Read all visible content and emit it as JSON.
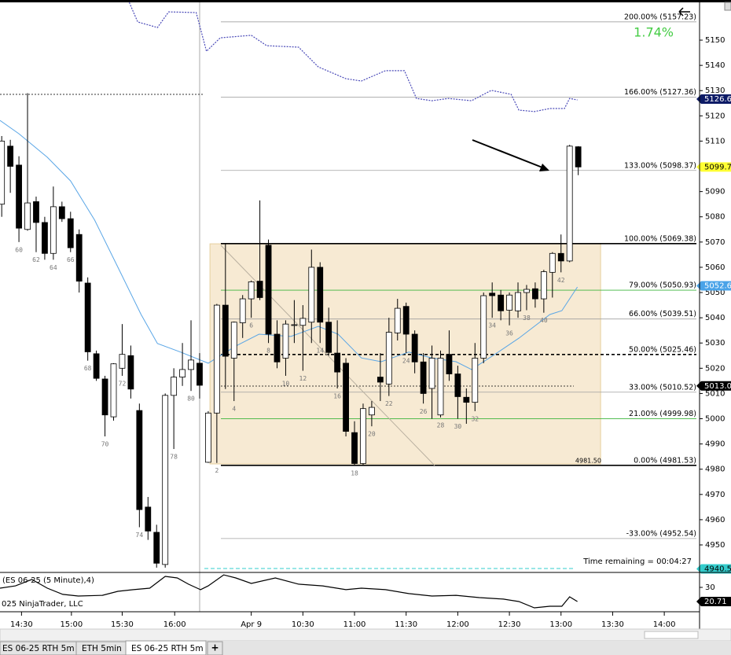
{
  "chart_data": {
    "type": "candlestick",
    "x": [
      58,
      59,
      60,
      61,
      62,
      63,
      64,
      65,
      66,
      67,
      68,
      69,
      70,
      71,
      72,
      73,
      74,
      75,
      76,
      77,
      78,
      79,
      80,
      81,
      82,
      83,
      84,
      85,
      86,
      87,
      88,
      89,
      90,
      91,
      92,
      93,
      94,
      95,
      96,
      97,
      98,
      99,
      100,
      101,
      102,
      103,
      104,
      105,
      106,
      107,
      108,
      109,
      110,
      111,
      112,
      113,
      114,
      115,
      116,
      117,
      118,
      119,
      120,
      121,
      122,
      123,
      124,
      125
    ],
    "open": [
      5085,
      5108,
      5100.5,
      5075,
      5086,
      5077.75,
      5065.5,
      5084,
      5079.25,
      5073,
      5053.75,
      5025.75,
      5015.75,
      5000.75,
      5020,
      5025,
      5003.25,
      4965,
      4955,
      4942.25,
      5009.25,
      5016.5,
      5019.5,
      5022,
      4982.75,
      5002.25,
      5045,
      5024,
      5038,
      5047.5,
      5054.5,
      5068.75,
      5033.5,
      5024,
      5037,
      5037,
      5038.25,
      5060,
      5038.25,
      5026,
      5022,
      4994.5,
      4982.25,
      5001.5,
      5016.5,
      5013.75,
      5034,
      5044.5,
      5033.5,
      5022.5,
      5012,
      5001.5,
      5025.5,
      5017.75,
      5008.5,
      5006.5,
      5024,
      5049.75,
      5049,
      5043,
      5042.75,
      5050,
      5051.5,
      5047.5,
      5058,
      5065.5,
      5062.5,
      5107.75
    ],
    "high": [
      5112,
      5110.5,
      5104,
      5129,
      5088,
      5080,
      5092,
      5086,
      5082,
      5075,
      5056,
      5027,
      5017,
      5022,
      5037.5,
      5029,
      5006,
      4969,
      4958,
      5010,
      5020,
      5030,
      5039,
      5026,
      5003,
      5045.5,
      5069.5,
      5038.5,
      5049,
      5054.75,
      5086.5,
      5071,
      5039,
      5039,
      5047,
      5045,
      5067,
      5062,
      5044,
      5039,
      5024,
      4999,
      5006,
      5007,
      5026,
      5040,
      5047.5,
      5046,
      5035,
      5026,
      5029,
      5027,
      5035,
      5021,
      5012,
      5030,
      5050,
      5054,
      5051,
      5050,
      5054,
      5053,
      5054,
      5059,
      5066,
      5073,
      5108.5,
      5108
    ],
    "low": [
      5080,
      5089.5,
      5070,
      5074.5,
      5066,
      5063,
      5063,
      5078,
      5066,
      5050,
      5023,
      5015,
      4993,
      4999.25,
      5017,
      5008,
      4957,
      4952,
      4941,
      4941,
      4988,
      5013,
      5011,
      5008,
      4982.5,
      4982.5,
      5011.75,
      5007,
      5032,
      5040,
      5047,
      5030,
      5020,
      5017,
      5030,
      5019,
      5030,
      5030,
      5025,
      5012,
      4993,
      4981.5,
      4981.5,
      4997,
      5007,
      5009,
      5031,
      5026,
      5018,
      5006,
      5000,
      5000.5,
      5015,
      5000,
      4998,
      5003,
      5022,
      5040,
      5039,
      5037,
      5040,
      5043,
      5044,
      5042,
      5048,
      5058,
      5062,
      5096.5
    ],
    "close": [
      5110,
      5100,
      5075.5,
      5085.5,
      5077.75,
      5065.5,
      5084,
      5079.25,
      5067.75,
      5054.5,
      5026.5,
      5016,
      5001.5,
      5021.75,
      5025.5,
      5011.75,
      4964,
      4955.5,
      4942.75,
      5009.25,
      5016.5,
      5019.5,
      5023.25,
      5013.25,
      5002.25,
      5045,
      5024.75,
      5038.25,
      5047.5,
      5054.25,
      5048,
      5033.5,
      5022.5,
      5037.5,
      5037.25,
      5039.75,
      5060,
      5038.25,
      5026.25,
      5018.5,
      4995,
      4982.25,
      5004,
      5004.5,
      5014.5,
      5034.25,
      5043.75,
      5033.5,
      5022.5,
      5010,
      5024,
      5024,
      5017.75,
      5008.75,
      5006.5,
      5024,
      5048.75,
      5048.75,
      5042.75,
      5049,
      5050,
      5051.25,
      5047.5,
      5058.25,
      5065.5,
      5062.5,
      5108,
      5099.75
    ],
    "bar_labels": [
      null,
      null,
      "60",
      null,
      "62",
      null,
      "64",
      null,
      "66",
      null,
      "68",
      null,
      "70",
      null,
      "72",
      null,
      "74",
      null,
      null,
      null,
      "78",
      null,
      "80",
      null,
      null,
      "2",
      null,
      "4",
      null,
      "6",
      null,
      "8",
      null,
      "10",
      null,
      "12",
      null,
      "14",
      null,
      "16",
      null,
      "18",
      null,
      "20",
      null,
      "22",
      null,
      "24",
      null,
      "26",
      null,
      "28",
      null,
      "30",
      null,
      "32",
      null,
      "34",
      null,
      "36",
      null,
      "38",
      null,
      "40",
      null,
      "42",
      null,
      null
    ],
    "up_color": "#ffffff",
    "down_color": "#000000",
    "xlim": [
      57.8,
      139.1
    ],
    "xticks": [
      {
        "value": 60.3,
        "label": "14:30"
      },
      {
        "value": 66.1,
        "label": "15:00"
      },
      {
        "value": 72,
        "label": "15:30"
      },
      {
        "value": 78.1,
        "label": "16:00"
      },
      {
        "value": 87,
        "label": "Apr 9"
      },
      {
        "value": 93,
        "label": "10:30"
      },
      {
        "value": 99,
        "label": "11:00"
      },
      {
        "value": 105,
        "label": "11:30"
      },
      {
        "value": 111,
        "label": "12:00"
      },
      {
        "value": 117,
        "label": "12:30"
      },
      {
        "value": 123,
        "label": "13:00"
      },
      {
        "value": 129,
        "label": "13:30"
      },
      {
        "value": 135,
        "label": "14:00"
      }
    ],
    "ylim": [
      4939.1,
      5165.9
    ],
    "yticks": [
      4950,
      4960,
      4970,
      4980,
      4990,
      5000,
      5010,
      5020,
      5030,
      5040,
      5050,
      5060,
      5070,
      5080,
      5090,
      5100,
      5110,
      5120,
      5130,
      5140,
      5150
    ],
    "series": [
      {
        "color": "#5aa6e6",
        "style": "solid",
        "x": [
          57.8,
          60,
          63.3,
          66,
          68.8,
          71.5,
          74.2,
          76.1,
          78.8,
          82,
          85.2,
          87.9,
          91.6,
          94.8,
          97.1,
          99.8,
          102.1,
          105.3,
          108,
          110.8,
          112.6,
          115.3,
          118.1,
          121.7,
          123.1,
          124.9
        ],
        "values": [
          5118.2,
          5112.9,
          5103.6,
          5094.2,
          5078.7,
          5060,
          5041.3,
          5029.8,
          5026.4,
          5022,
          5028.8,
          5033.5,
          5032.6,
          5036.6,
          5033.5,
          5024.1,
          5022.6,
          5026.4,
          5024.1,
          5022.6,
          5019.5,
          5025.5,
          5031.9,
          5041.3,
          5042.8,
          5052.2
        ]
      },
      {
        "color": "#4a4ab8",
        "style": "dotted",
        "x": [
          72.7,
          73.8,
          76.1,
          77.4,
          80.6,
          81.8,
          83.4,
          87,
          88.8,
          92.5,
          94.8,
          98,
          99.8,
          102.6,
          104.8,
          106.2,
          108,
          109.9,
          112.6,
          114.9,
          117.2,
          118.1,
          119.9,
          121.7,
          123.4,
          124,
          124.9
        ],
        "values": [
          5165.9,
          5157.2,
          5155,
          5161.2,
          5160.9,
          5145.6,
          5150.9,
          5151.9,
          5147.8,
          5147.2,
          5139.4,
          5134.7,
          5133.8,
          5137.9,
          5137.9,
          5126.9,
          5126,
          5126.9,
          5126,
          5130.1,
          5128.5,
          5122.3,
          5121.7,
          5122.9,
          5122.9,
          5126.9,
          5126.3
        ]
      }
    ],
    "fib_levels": [
      {
        "label": "200.00% (5157.23)",
        "value": 5157.23,
        "color": "#a0a0a0",
        "style": "thin"
      },
      {
        "label": "166.00% (5127.36)",
        "value": 5127.36,
        "color": "#a0a0a0",
        "style": "thin"
      },
      {
        "label": "133.00% (5098.37)",
        "value": 5098.37,
        "color": "#a0a0a0",
        "style": "thin"
      },
      {
        "label": "100.00% (5069.38)",
        "value": 5069.38,
        "color": "#000000",
        "style": "bold"
      },
      {
        "label": "79.00% (5050.93)",
        "value": 5050.93,
        "color": "#3cb43c",
        "style": "thin"
      },
      {
        "label": "66.00% (5039.51)",
        "value": 5039.51,
        "color": "#a0a0a0",
        "style": "thin"
      },
      {
        "label": "50.00% (5025.46)",
        "value": 5025.46,
        "color": "#000000",
        "style": "dashed"
      },
      {
        "label": "33.00% (5010.52)",
        "value": 5010.52,
        "color": "#a0a0a0",
        "style": "thin"
      },
      {
        "label": "21.00% (4999.98)",
        "value": 4999.98,
        "color": "#3cb43c",
        "style": "thin"
      },
      {
        "label": "0.00% (4981.53)",
        "value": 4981.53,
        "color": "#000000",
        "style": "bold"
      },
      {
        "label": "-33.00% (4952.54)",
        "value": 4952.54,
        "color": "#a0a0a0",
        "style": "thin"
      }
    ],
    "range_box": {
      "x": [
        82.2,
        127.6
      ],
      "y": [
        4982.1,
        5069.3
      ],
      "color": "#f7ead3"
    },
    "price_markers": [
      {
        "value": 5126.65,
        "bg": "#0c1a66",
        "fg": "#ffffff"
      },
      {
        "value": 5099.75,
        "bg": "#ffff33",
        "fg": "#000000"
      },
      {
        "value": 5052.66,
        "bg": "#4aa3e8",
        "fg": "#ffffff"
      },
      {
        "value": 5013,
        "label": "5013.00",
        "bg": "#000000",
        "fg": "#ffffff"
      },
      {
        "value": 4940.5,
        "label": "4940.50",
        "bg": "#33cccc",
        "fg": "#000000"
      }
    ],
    "change_text": "1.74%",
    "time_remaining": "Time remaining = 00:04:27",
    "box_low_label": "4981.50",
    "indicator": {
      "title": "(ES 06-25 (5 Minute),4)",
      "color": "#000000",
      "x": [
        57.8,
        59.6,
        61.5,
        63.3,
        65.1,
        66.9,
        69.7,
        71.5,
        73.3,
        75.2,
        77,
        78.4,
        79.7,
        81.1,
        82,
        83.8,
        85.2,
        87,
        89.8,
        92.5,
        95.3,
        98,
        99.8,
        102.6,
        105.3,
        108,
        110.8,
        113.5,
        116.3,
        118.1,
        119.9,
        121.7,
        123.1,
        124,
        124.9
      ],
      "values": [
        29.5,
        31,
        35.2,
        29.5,
        25.4,
        24.3,
        24.8,
        27.4,
        28.5,
        29.5,
        37.2,
        36.2,
        32.1,
        28.5,
        31,
        38.2,
        36.2,
        32.6,
        36.2,
        32.1,
        31,
        28.5,
        29.5,
        28.5,
        25.9,
        24.3,
        24.8,
        23.3,
        22.3,
        20.7,
        16.6,
        17.6,
        17.6,
        23.8,
        20.7
      ],
      "ylim": [
        14,
        39.8
      ],
      "yticks": [
        30
      ],
      "marker": {
        "value": 20.71,
        "bg": "#000000",
        "fg": "#ffffff"
      }
    }
  },
  "copyright": "025 NinjaTrader, LLC",
  "tabs": [
    "ES 06-25 RTH 5m",
    "ETH 5min",
    "ES 06-25 RTH 5m",
    "+"
  ]
}
